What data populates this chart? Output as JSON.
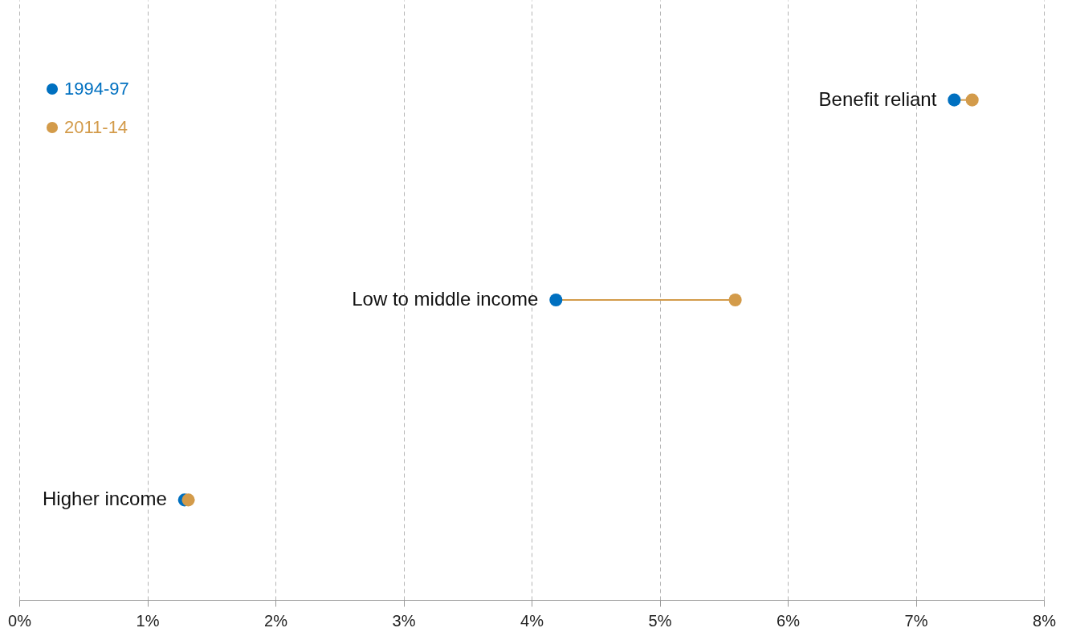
{
  "chart_data": {
    "type": "scatter",
    "orientation": "horizontal",
    "categories": [
      "Benefit reliant",
      "Low to middle income",
      "Higher income"
    ],
    "series": [
      {
        "name": "1994-97",
        "color": "#0070c0",
        "values": [
          7.3,
          4.19,
          1.29
        ]
      },
      {
        "name": "2011-14",
        "color": "#d39b4a",
        "values": [
          7.44,
          5.59,
          1.32
        ]
      }
    ],
    "xlim": [
      0,
      8
    ],
    "xticks": [
      {
        "value": 0,
        "label": "0%"
      },
      {
        "value": 1,
        "label": "1%"
      },
      {
        "value": 2,
        "label": "2%"
      },
      {
        "value": 3,
        "label": "3%"
      },
      {
        "value": 4,
        "label": "4%"
      },
      {
        "value": 5,
        "label": "5%"
      },
      {
        "value": 6,
        "label": "6%"
      },
      {
        "value": 7,
        "label": "7%"
      },
      {
        "value": 8,
        "label": "8%"
      }
    ],
    "grid": "x",
    "legend": "top left",
    "marker": "circle"
  }
}
